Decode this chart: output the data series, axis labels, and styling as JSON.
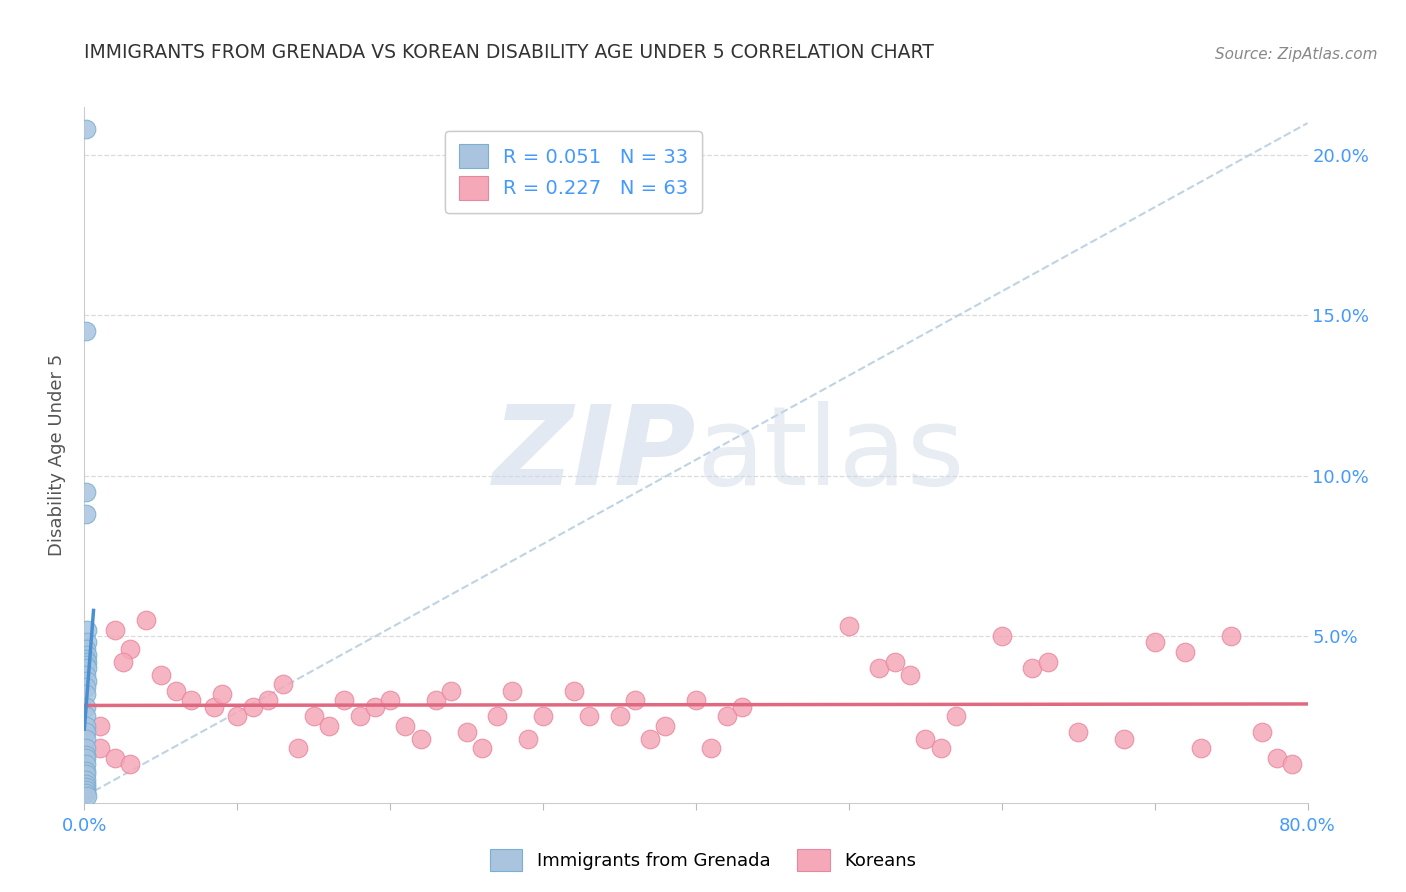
{
  "title": "IMMIGRANTS FROM GRENADA VS KOREAN DISABILITY AGE UNDER 5 CORRELATION CHART",
  "source": "Source: ZipAtlas.com",
  "ylabel": "Disability Age Under 5",
  "xlim": [
    0.0,
    0.8
  ],
  "ylim": [
    -0.002,
    0.215
  ],
  "yticks": [
    0.05,
    0.1,
    0.15,
    0.2
  ],
  "xticks": [
    0.0,
    0.1,
    0.2,
    0.3,
    0.4,
    0.5,
    0.6,
    0.7,
    0.8
  ],
  "color_blue": "#aac4e0",
  "color_pink": "#f5a8b8",
  "color_blue_edge": "#7aafd0",
  "color_pink_edge": "#e888a0",
  "trendline_blue_color": "#4a90d0",
  "trendline_pink_color": "#e06880",
  "diagonal_color": "#b8cfe0",
  "watermark_zip": "ZIP",
  "watermark_atlas": "atlas",
  "background_color": "#ffffff",
  "grid_color": "#d8d8d8",
  "tick_label_color": "#4499ff",
  "axis_label_color": "#555555",
  "title_color": "#333333",
  "source_color": "#888888",
  "legend_text_color": "#4499ff",
  "grenada_points": [
    [
      0.001,
      0.208
    ],
    [
      0.001,
      0.145
    ],
    [
      0.001,
      0.095
    ],
    [
      0.001,
      0.088
    ],
    [
      0.002,
      0.052
    ],
    [
      0.002,
      0.048
    ],
    [
      0.001,
      0.046
    ],
    [
      0.002,
      0.044
    ],
    [
      0.001,
      0.043
    ],
    [
      0.002,
      0.042
    ],
    [
      0.001,
      0.041
    ],
    [
      0.002,
      0.04
    ],
    [
      0.001,
      0.038
    ],
    [
      0.002,
      0.036
    ],
    [
      0.001,
      0.034
    ],
    [
      0.001,
      0.032
    ],
    [
      0.001,
      0.028
    ],
    [
      0.001,
      0.025
    ],
    [
      0.001,
      0.022
    ],
    [
      0.001,
      0.02
    ],
    [
      0.001,
      0.018
    ],
    [
      0.001,
      0.015
    ],
    [
      0.001,
      0.013
    ],
    [
      0.001,
      0.012
    ],
    [
      0.001,
      0.01
    ],
    [
      0.001,
      0.008
    ],
    [
      0.001,
      0.007
    ],
    [
      0.001,
      0.005
    ],
    [
      0.001,
      0.004
    ],
    [
      0.001,
      0.003
    ],
    [
      0.001,
      0.002
    ],
    [
      0.001,
      0.001
    ],
    [
      0.002,
      0.0
    ]
  ],
  "korean_points": [
    [
      0.02,
      0.052
    ],
    [
      0.03,
      0.046
    ],
    [
      0.025,
      0.042
    ],
    [
      0.04,
      0.055
    ],
    [
      0.05,
      0.038
    ],
    [
      0.06,
      0.033
    ],
    [
      0.07,
      0.03
    ],
    [
      0.085,
      0.028
    ],
    [
      0.09,
      0.032
    ],
    [
      0.1,
      0.025
    ],
    [
      0.11,
      0.028
    ],
    [
      0.12,
      0.03
    ],
    [
      0.13,
      0.035
    ],
    [
      0.14,
      0.015
    ],
    [
      0.15,
      0.025
    ],
    [
      0.16,
      0.022
    ],
    [
      0.17,
      0.03
    ],
    [
      0.18,
      0.025
    ],
    [
      0.19,
      0.028
    ],
    [
      0.2,
      0.03
    ],
    [
      0.21,
      0.022
    ],
    [
      0.22,
      0.018
    ],
    [
      0.23,
      0.03
    ],
    [
      0.24,
      0.033
    ],
    [
      0.25,
      0.02
    ],
    [
      0.26,
      0.015
    ],
    [
      0.27,
      0.025
    ],
    [
      0.28,
      0.033
    ],
    [
      0.29,
      0.018
    ],
    [
      0.3,
      0.025
    ],
    [
      0.32,
      0.033
    ],
    [
      0.33,
      0.025
    ],
    [
      0.35,
      0.025
    ],
    [
      0.36,
      0.03
    ],
    [
      0.37,
      0.018
    ],
    [
      0.38,
      0.022
    ],
    [
      0.4,
      0.03
    ],
    [
      0.41,
      0.015
    ],
    [
      0.42,
      0.025
    ],
    [
      0.43,
      0.028
    ],
    [
      0.5,
      0.053
    ],
    [
      0.52,
      0.04
    ],
    [
      0.53,
      0.042
    ],
    [
      0.54,
      0.038
    ],
    [
      0.55,
      0.018
    ],
    [
      0.56,
      0.015
    ],
    [
      0.57,
      0.025
    ],
    [
      0.6,
      0.05
    ],
    [
      0.62,
      0.04
    ],
    [
      0.63,
      0.042
    ],
    [
      0.65,
      0.02
    ],
    [
      0.68,
      0.018
    ],
    [
      0.7,
      0.048
    ],
    [
      0.72,
      0.045
    ],
    [
      0.73,
      0.015
    ],
    [
      0.75,
      0.05
    ],
    [
      0.77,
      0.02
    ],
    [
      0.78,
      0.012
    ],
    [
      0.79,
      0.01
    ],
    [
      0.01,
      0.022
    ],
    [
      0.01,
      0.015
    ],
    [
      0.02,
      0.012
    ],
    [
      0.03,
      0.01
    ]
  ],
  "blue_trend_x": [
    0.0,
    0.006
  ],
  "blue_trend_y": [
    0.021,
    0.058
  ]
}
